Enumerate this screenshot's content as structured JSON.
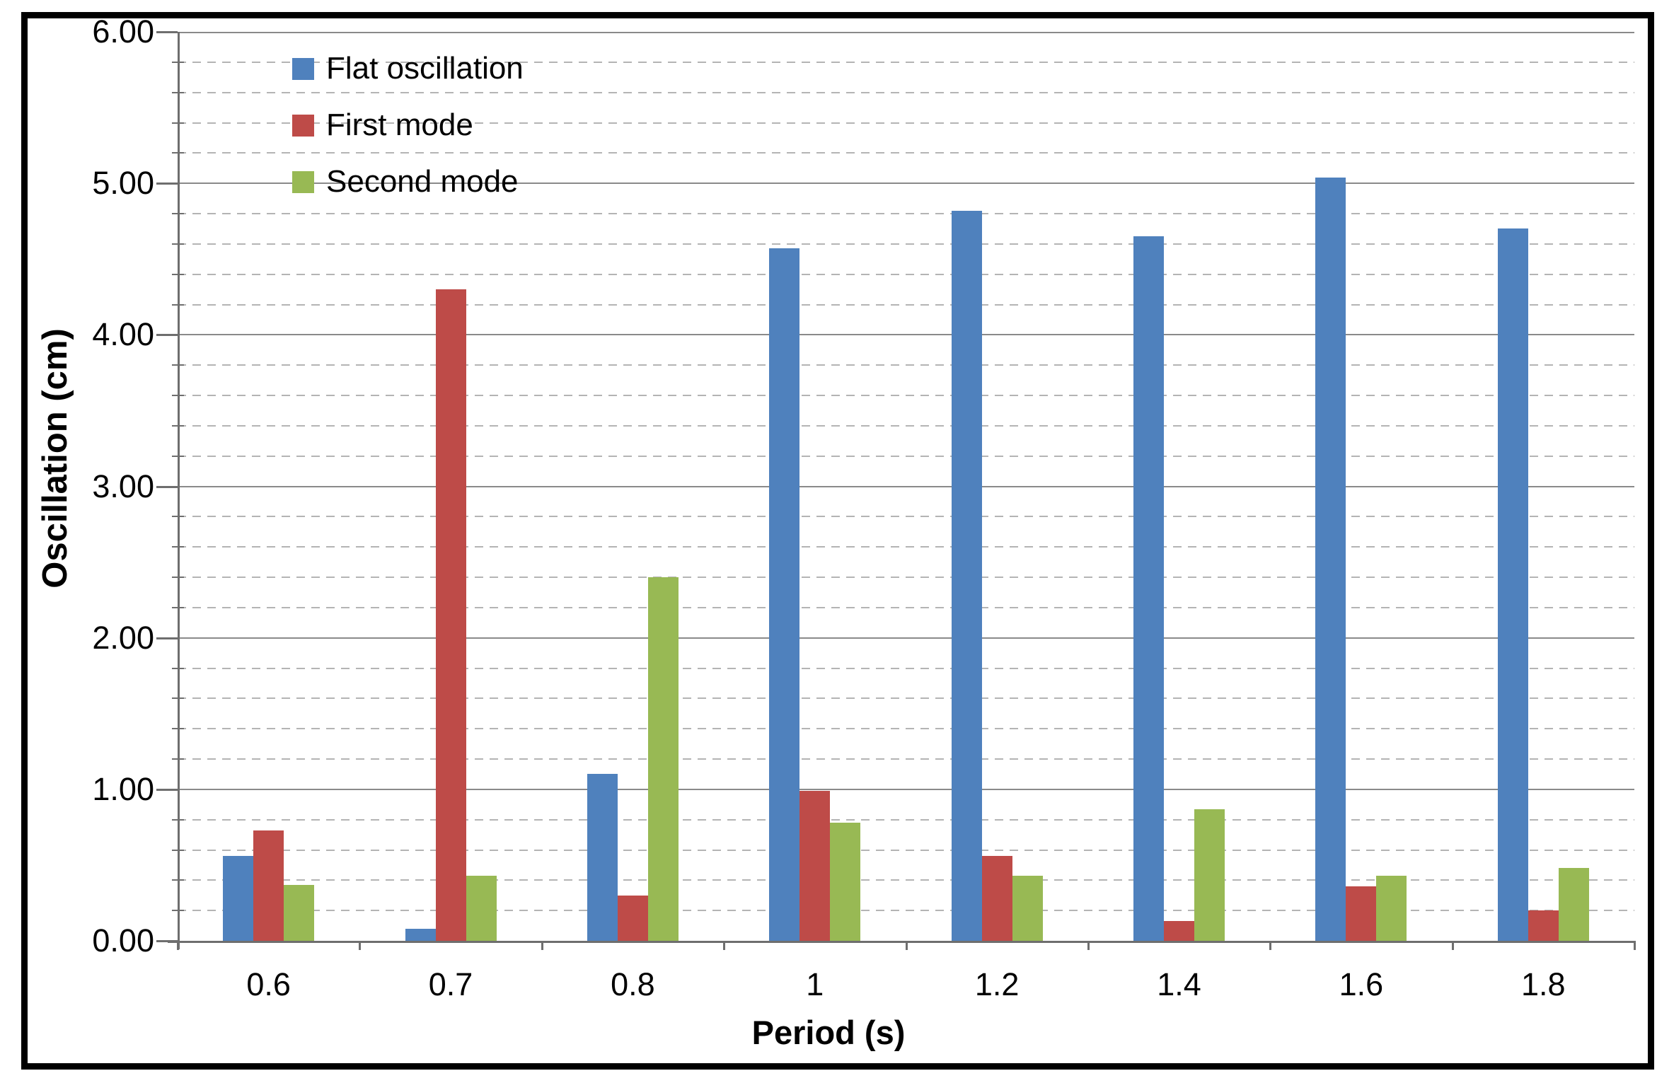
{
  "chart_data": {
    "type": "bar",
    "title": "",
    "xlabel": "Period (s)",
    "ylabel": "Oscillation (cm)",
    "categories": [
      "0.6",
      "0.7",
      "0.8",
      "1",
      "1.2",
      "1.4",
      "1.6",
      "1.8"
    ],
    "series": [
      {
        "name": "Flat oscillation",
        "color": "#4F81BD",
        "values": [
          0.56,
          0.08,
          1.1,
          4.57,
          4.82,
          4.65,
          5.04,
          4.7
        ]
      },
      {
        "name": "First mode",
        "color": "#BE4B48",
        "values": [
          0.73,
          4.3,
          0.3,
          0.99,
          0.56,
          0.13,
          0.36,
          0.2
        ]
      },
      {
        "name": "Second mode",
        "color": "#98B954",
        "values": [
          0.37,
          0.43,
          2.4,
          0.78,
          0.43,
          0.87,
          0.43,
          0.48
        ]
      }
    ],
    "ylim": [
      0,
      6
    ],
    "y_major_step": 1.0,
    "y_minor_step": 0.2,
    "y_tick_labels": [
      "0.00",
      "1.00",
      "2.00",
      "3.00",
      "4.00",
      "5.00",
      "6.00"
    ],
    "grid": {
      "major": "solid",
      "minor": "dashed"
    },
    "legend_position": "top-left-inside",
    "style": {
      "background": "#FFFFFF",
      "outer_border": "#000000",
      "axis_color": "#6E6E6E",
      "major_grid_color": "#8A8A8A",
      "minor_grid_color": "#B4B4B4",
      "text_color": "#000000"
    }
  }
}
